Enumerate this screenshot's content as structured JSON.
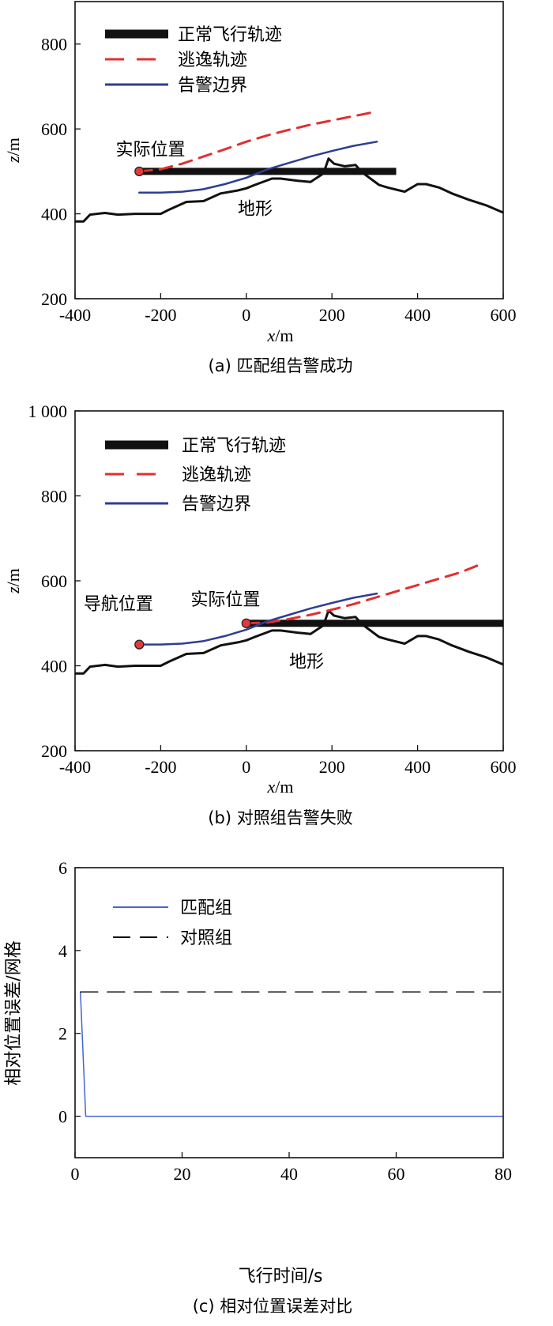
{
  "chart_data": [
    {
      "type": "line",
      "caption": "(a) 匹配组告警成功",
      "xlabel": "x/m",
      "ylabel": "z/m",
      "xlim": [
        -400,
        600
      ],
      "ylim": [
        200,
        900
      ],
      "xticks": [
        -400,
        -200,
        0,
        200,
        400,
        600
      ],
      "yticks": [
        200,
        400,
        600,
        800
      ],
      "legend": [
        {
          "key": "normal",
          "label": "正常飞行轨迹"
        },
        {
          "key": "escape",
          "label": "逃逸轨迹"
        },
        {
          "key": "boundary",
          "label": "告警边界"
        }
      ],
      "series": [
        {
          "key": "terrain",
          "name": "地形",
          "x": [
            -400,
            -380,
            -365,
            -330,
            -300,
            -260,
            -200,
            -180,
            -140,
            -100,
            -60,
            -20,
            0,
            20,
            60,
            80,
            120,
            150,
            180,
            192,
            205,
            230,
            255,
            270,
            310,
            330,
            370,
            400,
            420,
            450,
            480,
            520,
            560,
            600
          ],
          "y": [
            382,
            382,
            398,
            402,
            398,
            400,
            400,
            410,
            428,
            430,
            448,
            455,
            460,
            468,
            483,
            483,
            478,
            475,
            495,
            530,
            518,
            512,
            515,
            498,
            468,
            462,
            452,
            470,
            470,
            462,
            448,
            433,
            420,
            403
          ]
        },
        {
          "key": "normal",
          "name": "正常飞行轨迹",
          "x": [
            -250,
            350
          ],
          "y": [
            500,
            500
          ]
        },
        {
          "key": "escape",
          "name": "逃逸轨迹",
          "x": [
            -250,
            -200,
            -150,
            -100,
            -50,
            0,
            50,
            100,
            150,
            200,
            250,
            300
          ],
          "y": [
            500,
            505,
            518,
            535,
            552,
            570,
            585,
            598,
            610,
            620,
            630,
            640
          ]
        },
        {
          "key": "boundary",
          "name": "告警边界",
          "x": [
            -250,
            -200,
            -150,
            -100,
            -50,
            0,
            50,
            100,
            150,
            200,
            250,
            305
          ],
          "y": [
            450,
            450,
            452,
            458,
            470,
            485,
            505,
            520,
            535,
            548,
            560,
            570
          ]
        },
        {
          "key": "point",
          "name": "实际位置",
          "x": [
            -250
          ],
          "y": [
            500
          ]
        }
      ],
      "annotations": [
        {
          "text": "实际位置",
          "x": -305,
          "y": 538
        },
        {
          "text": "地形",
          "x": -20,
          "y": 398
        }
      ]
    },
    {
      "type": "line",
      "caption": "(b) 对照组告警失败",
      "xlabel": "x/m",
      "ylabel": "z/m",
      "xlim": [
        -400,
        600
      ],
      "ylim": [
        200,
        1000
      ],
      "xticks": [
        -400,
        -200,
        0,
        200,
        400,
        600
      ],
      "yticks": [
        200,
        400,
        600,
        800,
        1000
      ],
      "yticklabels": [
        "200",
        "400",
        "600",
        "800",
        "1 000"
      ],
      "legend": [
        {
          "key": "normal",
          "label": "正常飞行轨迹"
        },
        {
          "key": "escape",
          "label": "逃逸轨迹"
        },
        {
          "key": "boundary",
          "label": "告警边界"
        }
      ],
      "series": [
        {
          "key": "terrain",
          "name": "地形",
          "x": [
            -400,
            -380,
            -365,
            -330,
            -300,
            -260,
            -200,
            -180,
            -140,
            -100,
            -60,
            -20,
            0,
            20,
            60,
            80,
            120,
            150,
            180,
            192,
            205,
            230,
            255,
            270,
            310,
            330,
            370,
            400,
            420,
            450,
            480,
            520,
            560,
            600
          ],
          "y": [
            382,
            382,
            398,
            402,
            398,
            400,
            400,
            410,
            428,
            430,
            448,
            455,
            460,
            468,
            483,
            483,
            478,
            475,
            495,
            530,
            518,
            512,
            515,
            498,
            468,
            462,
            452,
            470,
            470,
            462,
            448,
            433,
            420,
            403
          ]
        },
        {
          "key": "normal",
          "name": "正常飞行轨迹",
          "x": [
            0,
            600
          ],
          "y": [
            500,
            500
          ]
        },
        {
          "key": "escape",
          "name": "逃逸轨迹",
          "x": [
            0,
            50,
            100,
            150,
            200,
            250,
            300,
            350,
            400,
            450,
            500,
            550
          ],
          "y": [
            500,
            502,
            510,
            520,
            532,
            545,
            560,
            575,
            590,
            605,
            620,
            640
          ]
        },
        {
          "key": "boundary",
          "name": "告警边界",
          "x": [
            -250,
            -200,
            -150,
            -100,
            -50,
            0,
            50,
            100,
            150,
            200,
            250,
            305
          ],
          "y": [
            450,
            450,
            452,
            458,
            470,
            485,
            505,
            520,
            535,
            548,
            560,
            570
          ]
        },
        {
          "key": "point",
          "name": "导航位置",
          "x": [
            -250
          ],
          "y": [
            450
          ]
        },
        {
          "key": "point",
          "name": "实际位置",
          "x": [
            0
          ],
          "y": [
            500
          ]
        }
      ],
      "annotations": [
        {
          "text": "导航位置",
          "x": -380,
          "y": 532
        },
        {
          "text": "实际位置",
          "x": -130,
          "y": 542
        },
        {
          "text": "地形",
          "x": 100,
          "y": 396
        }
      ]
    },
    {
      "type": "line",
      "caption": "(c) 相对位置误差对比",
      "xlabel": "飞行时间/s",
      "ylabel": "相对位置误差/网格",
      "xlim": [
        0,
        80
      ],
      "ylim": [
        -1,
        6
      ],
      "xticks": [
        0,
        20,
        40,
        60,
        80
      ],
      "yticks": [
        0,
        2,
        4,
        6
      ],
      "legend": [
        {
          "key": "match",
          "label": "匹配组"
        },
        {
          "key": "control",
          "label": "对照组"
        }
      ],
      "series": [
        {
          "key": "match",
          "name": "匹配组",
          "x": [
            1,
            2,
            80
          ],
          "y": [
            3,
            0,
            0
          ]
        },
        {
          "key": "control",
          "name": "对照组",
          "x": [
            1,
            80
          ],
          "y": [
            3,
            3
          ]
        }
      ]
    }
  ]
}
